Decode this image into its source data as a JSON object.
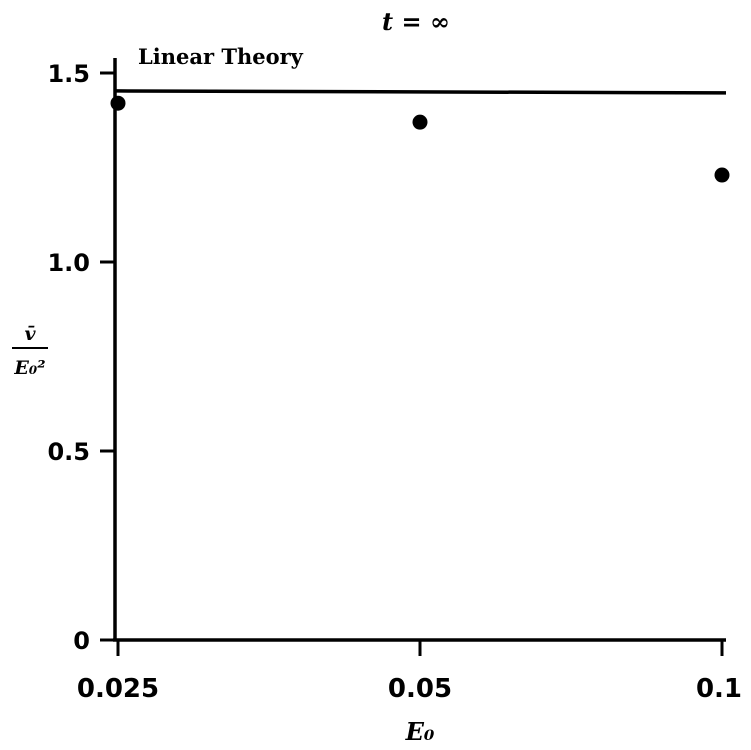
{
  "chart_data": {
    "type": "scatter",
    "title": "t = ∞",
    "xlabel": "E₀",
    "ylabel_numerator": "v̄",
    "ylabel_denominator": "E₀²",
    "categories": [
      "0.025",
      "0.05",
      "0.1"
    ],
    "x": [
      0.025,
      0.05,
      0.1
    ],
    "y": [
      1.42,
      1.37,
      1.23
    ],
    "ylim": [
      0,
      1.5
    ],
    "yticks": [
      0,
      0.5,
      1.0,
      1.5
    ],
    "ytick_labels": [
      "0",
      "0.5",
      "1.0",
      "1.5"
    ],
    "grid": false,
    "reference_line": {
      "label": "Linear Theory",
      "value": 1.45
    }
  }
}
